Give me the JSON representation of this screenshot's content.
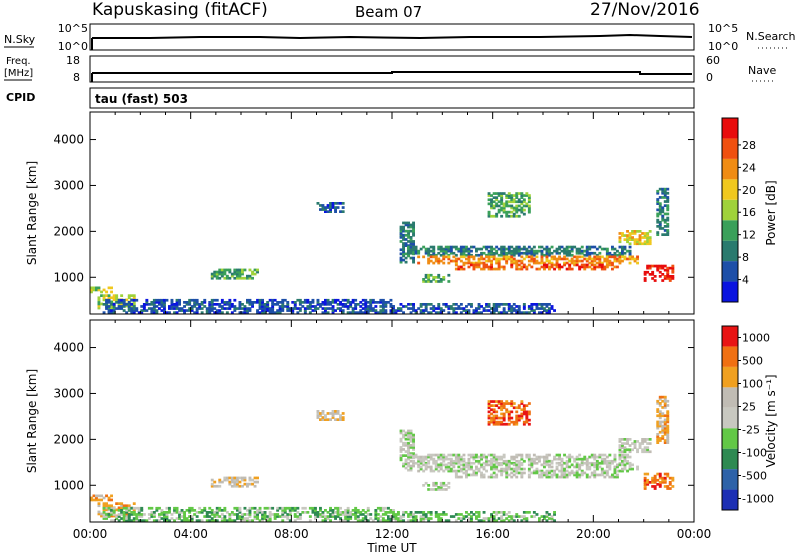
{
  "header": {
    "station": "Kapuskasing (fitACF)",
    "beam": "Beam 07",
    "date": "27/Nov/2016"
  },
  "status_panels": {
    "nsky": {
      "label": "N.Sky",
      "ticks_left": [
        "10^5",
        "10^0"
      ],
      "right_label": "N.Search",
      "ticks_right": [
        "10^5",
        "10^0"
      ]
    },
    "freq": {
      "label_line1": "Freq.",
      "label_line2": "[MHz]",
      "ticks_left": [
        "18",
        "8"
      ],
      "right_label": "Nave",
      "ticks_right": [
        "60",
        "0"
      ]
    },
    "cpid": {
      "label": "CPID",
      "text": "tau (fast) 503"
    }
  },
  "colors": {
    "power_scale": [
      "#0a14e0",
      "#1d4fa8",
      "#2a7a6e",
      "#3aa05a",
      "#9fd23a",
      "#f0c81e",
      "#f08c14",
      "#f05010",
      "#e80c0c"
    ],
    "velocity_scale": [
      "#1c2fb4",
      "#2d62a8",
      "#2e8a52",
      "#62c846",
      "#c8c8c0",
      "#c0bcb4",
      "#f0a020",
      "#f07012",
      "#e81414"
    ]
  },
  "chart_data": [
    {
      "type": "heatmap",
      "name": "power",
      "ylabel": "Slant Range [km]",
      "yticks": [
        1000,
        2000,
        3000,
        4000
      ],
      "ylim": [
        200,
        4600
      ],
      "xlim": [
        0,
        24
      ],
      "colorbar": {
        "label": "Power [dB]",
        "ticks": [
          "4",
          "8",
          "12",
          "16",
          "20",
          "24",
          "28"
        ]
      }
    },
    {
      "type": "heatmap",
      "name": "velocity",
      "ylabel": "Slant Range [km]",
      "yticks": [
        1000,
        2000,
        3000,
        4000
      ],
      "ylim": [
        200,
        4600
      ],
      "xlim": [
        0,
        24
      ],
      "xlabel": "Time UT",
      "xticks": [
        "00:00",
        "04:00",
        "08:00",
        "12:00",
        "16:00",
        "20:00",
        "00:00"
      ],
      "colorbar": {
        "label": "Velocity [m s⁻¹]",
        "ticks": [
          "1000",
          "500",
          "100",
          "25",
          "-25",
          "-100",
          "-500",
          "-1000"
        ]
      }
    }
  ],
  "echo_regions": [
    {
      "t0": 0.0,
      "t1": 0.8,
      "r0": 650,
      "r1": 780,
      "p": 4,
      "v": 6
    },
    {
      "t0": 0.3,
      "t1": 1.8,
      "r0": 300,
      "r1": 600,
      "p": 4,
      "v": 6
    },
    {
      "t0": 0.5,
      "t1": 12.0,
      "r0": 200,
      "r1": 500,
      "p": 1,
      "v": 3
    },
    {
      "t0": 12.0,
      "t1": 18.5,
      "r0": 200,
      "r1": 400,
      "p": 1,
      "v": 3
    },
    {
      "t0": 4.8,
      "t1": 6.6,
      "r0": 950,
      "r1": 1150,
      "p": 3,
      "v": 5
    },
    {
      "t0": 9.0,
      "t1": 10.0,
      "r0": 2400,
      "r1": 2600,
      "p": 1,
      "v": 5
    },
    {
      "t0": 12.3,
      "t1": 12.8,
      "r0": 1300,
      "r1": 2200,
      "p": 2,
      "v": 4
    },
    {
      "t0": 12.6,
      "t1": 21.5,
      "r0": 1450,
      "r1": 1650,
      "p": 2,
      "v": 4
    },
    {
      "t0": 13.0,
      "t1": 21.8,
      "r0": 1280,
      "r1": 1420,
      "p": 6,
      "v": 4
    },
    {
      "t0": 14.5,
      "t1": 21.0,
      "r0": 1150,
      "r1": 1280,
      "p": 7,
      "v": 4
    },
    {
      "t0": 13.2,
      "t1": 14.2,
      "r0": 880,
      "r1": 1050,
      "p": 3,
      "v": 4
    },
    {
      "t0": 21.0,
      "t1": 22.3,
      "r0": 1700,
      "r1": 2000,
      "p": 5,
      "v": 4
    },
    {
      "t0": 22.0,
      "t1": 23.2,
      "r0": 900,
      "r1": 1250,
      "p": 8,
      "v": 7
    },
    {
      "t0": 15.8,
      "t1": 17.5,
      "r0": 2300,
      "r1": 2800,
      "p": 3,
      "v": 7
    },
    {
      "t0": 22.5,
      "t1": 23.0,
      "r0": 1900,
      "r1": 2900,
      "p": 2,
      "v": 6
    }
  ]
}
